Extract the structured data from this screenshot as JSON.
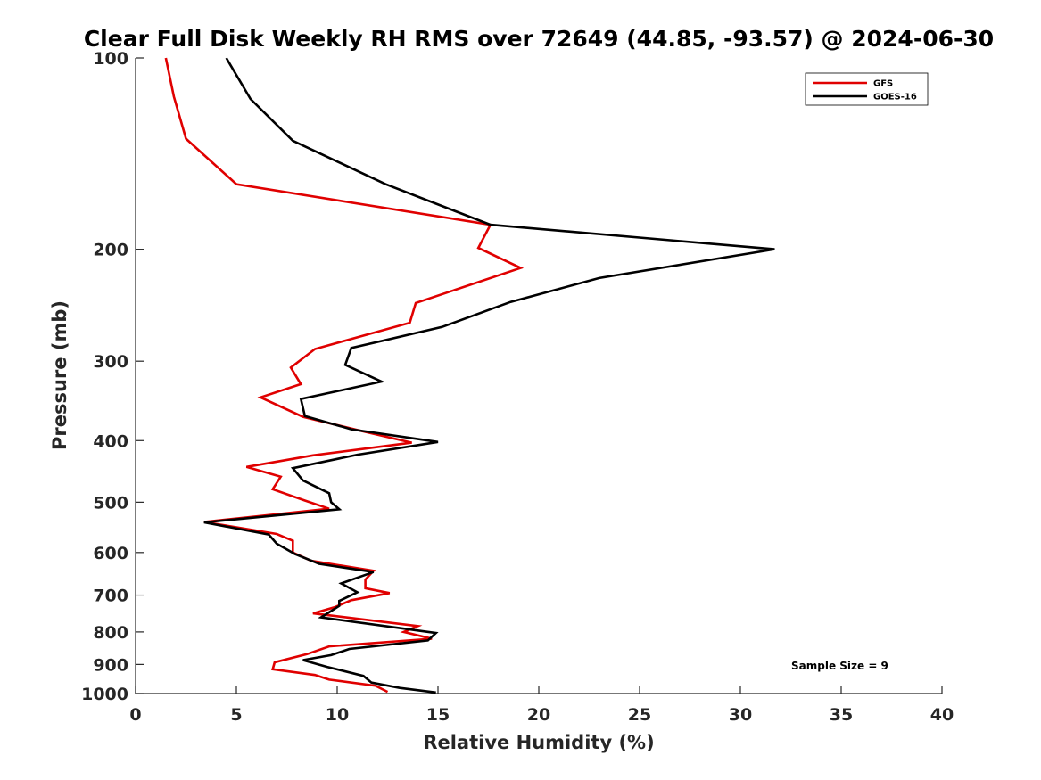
{
  "chart_data": {
    "type": "line",
    "title": "Clear Full Disk Weekly RH RMS over 72649 (44.85, -93.57) @ 2024-06-30",
    "xlabel": "Relative Humidity (%)",
    "ylabel": "Pressure (mb)",
    "xlim": [
      0,
      40
    ],
    "ylim": [
      100,
      1000
    ],
    "y_scale": "log",
    "y_reversed": true,
    "x_ticks": [
      0,
      5,
      10,
      15,
      20,
      25,
      30,
      35,
      40
    ],
    "y_ticks": [
      100,
      200,
      300,
      400,
      500,
      600,
      700,
      800,
      900,
      1000
    ],
    "grid": false,
    "legend_position": "top-right",
    "annotation": "Sample Size = 9",
    "series": [
      {
        "name": "GFS",
        "color": "#e00000",
        "points": [
          [
            1.5,
            100
          ],
          [
            1.9,
            115
          ],
          [
            2.5,
            134
          ],
          [
            5.0,
            158
          ],
          [
            17.6,
            183
          ],
          [
            17.0,
            199
          ],
          [
            19.1,
            214
          ],
          [
            13.9,
            243
          ],
          [
            13.6,
            261
          ],
          [
            8.9,
            287
          ],
          [
            7.7,
            307
          ],
          [
            8.2,
            326
          ],
          [
            6.2,
            342
          ],
          [
            8.3,
            367
          ],
          [
            11.3,
            387
          ],
          [
            13.7,
            403
          ],
          [
            8.8,
            422
          ],
          [
            5.5,
            440
          ],
          [
            7.2,
            456
          ],
          [
            6.8,
            477
          ],
          [
            8.4,
            497
          ],
          [
            9.6,
            512
          ],
          [
            3.4,
            537
          ],
          [
            7.0,
            561
          ],
          [
            7.8,
            575
          ],
          [
            7.8,
            600
          ],
          [
            8.7,
            618
          ],
          [
            11.8,
            641
          ],
          [
            11.4,
            662
          ],
          [
            11.4,
            683
          ],
          [
            12.6,
            695
          ],
          [
            10.7,
            713
          ],
          [
            9.9,
            731
          ],
          [
            8.8,
            748
          ],
          [
            14.0,
            783
          ],
          [
            13.3,
            800
          ],
          [
            14.7,
            820
          ],
          [
            9.6,
            843
          ],
          [
            8.5,
            867
          ],
          [
            6.9,
            893
          ],
          [
            6.8,
            916
          ],
          [
            8.9,
            935
          ],
          [
            9.6,
            951
          ],
          [
            11.9,
            972
          ],
          [
            12.5,
            994
          ]
        ]
      },
      {
        "name": "GOES-16",
        "color": "#000000",
        "points": [
          [
            4.5,
            100
          ],
          [
            5.7,
            116
          ],
          [
            7.8,
            135
          ],
          [
            12.4,
            158
          ],
          [
            17.6,
            183
          ],
          [
            31.7,
            200
          ],
          [
            23.0,
            222
          ],
          [
            18.6,
            242
          ],
          [
            15.2,
            265
          ],
          [
            10.7,
            286
          ],
          [
            10.4,
            304
          ],
          [
            12.2,
            323
          ],
          [
            8.2,
            344
          ],
          [
            8.4,
            366
          ],
          [
            10.7,
            384
          ],
          [
            15.0,
            402
          ],
          [
            11.0,
            421
          ],
          [
            7.8,
            442
          ],
          [
            8.3,
            462
          ],
          [
            9.6,
            484
          ],
          [
            9.7,
            500
          ],
          [
            10.1,
            513
          ],
          [
            3.4,
            538
          ],
          [
            6.6,
            562
          ],
          [
            7.0,
            581
          ],
          [
            7.9,
            603
          ],
          [
            9.1,
            625
          ],
          [
            11.8,
            644
          ],
          [
            10.2,
            671
          ],
          [
            11.0,
            693
          ],
          [
            10.1,
            715
          ],
          [
            10.1,
            728
          ],
          [
            9.2,
            759
          ],
          [
            14.9,
            803
          ],
          [
            14.5,
            825
          ],
          [
            10.6,
            851
          ],
          [
            9.7,
            870
          ],
          [
            8.3,
            886
          ],
          [
            9.5,
            908
          ],
          [
            11.3,
            938
          ],
          [
            11.7,
            961
          ],
          [
            13.1,
            980
          ],
          [
            14.9,
            996
          ]
        ]
      }
    ]
  }
}
